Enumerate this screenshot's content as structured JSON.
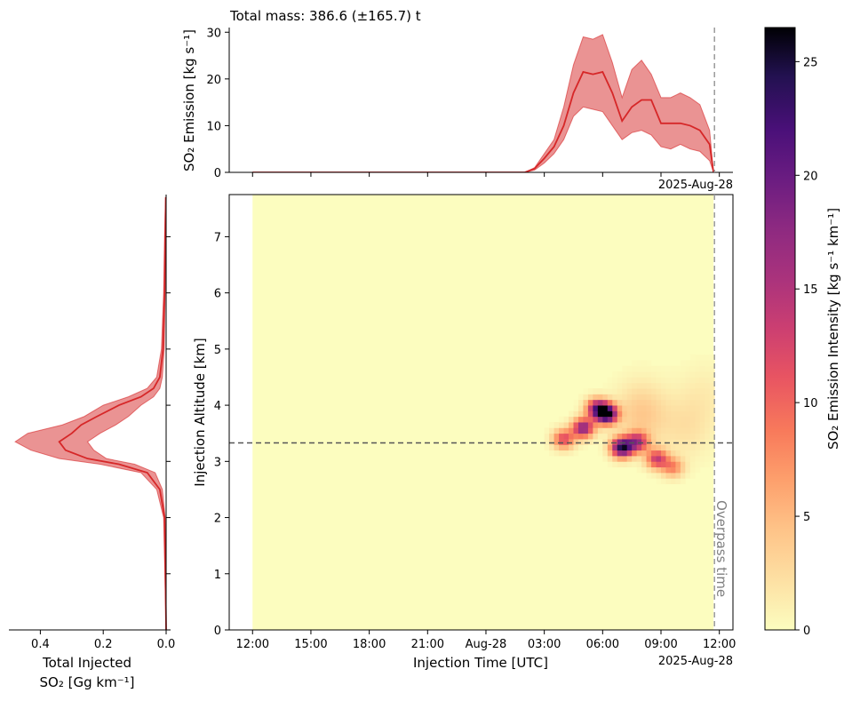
{
  "chart_data": [
    {
      "panel": "top",
      "type": "area",
      "title": "Total mass: 386.6 (±165.7) t",
      "ylabel": "SO₂ Emission [kg s⁻¹]",
      "ylim": [
        0,
        31
      ],
      "yticks": [
        "0",
        "10",
        "20",
        "30"
      ],
      "xlim_hours": [
        -13.2,
        12.7
      ],
      "x_offset_label": "2025-Aug-28",
      "x": [
        -12,
        0,
        2,
        2.5,
        3.0,
        3.5,
        4.0,
        4.5,
        5.0,
        5.5,
        6.0,
        6.5,
        7.0,
        7.5,
        8.0,
        8.5,
        9.0,
        9.5,
        10.0,
        10.5,
        11.0,
        11.5,
        11.7
      ],
      "mean": [
        0,
        0,
        0,
        0.8,
        3.0,
        5.5,
        10.0,
        17.0,
        21.5,
        21.0,
        21.5,
        17.0,
        11.0,
        14.0,
        15.5,
        15.5,
        10.5,
        10.5,
        10.5,
        10.0,
        9.0,
        6.0,
        0
      ],
      "lower": [
        0,
        0,
        0,
        0.5,
        2.0,
        4.0,
        7.0,
        12.0,
        14.0,
        13.5,
        13.0,
        10.0,
        7.0,
        8.5,
        9.0,
        8.0,
        5.5,
        5.0,
        6.0,
        5.0,
        4.5,
        2.5,
        0
      ],
      "upper": [
        0,
        0,
        0,
        1.0,
        4.0,
        7.0,
        14.0,
        23.0,
        29.0,
        28.5,
        29.5,
        23.5,
        16.0,
        22.0,
        24.0,
        21.0,
        16.0,
        16.0,
        17.0,
        16.0,
        14.5,
        9.0,
        0
      ],
      "color": "#d62728"
    },
    {
      "panel": "side",
      "type": "area",
      "xlabel": "Total Injected",
      "xlabel2": "SO₂ [Gg km⁻¹]",
      "xlim": [
        0.5,
        0.0
      ],
      "xticks": [
        "0.4",
        "0.2",
        "0.0"
      ],
      "y": [
        0,
        2.0,
        2.5,
        2.8,
        2.95,
        3.05,
        3.2,
        3.35,
        3.5,
        3.65,
        3.8,
        4.0,
        4.15,
        4.3,
        4.5,
        5.0,
        6.0,
        7.0,
        7.7
      ],
      "mean": [
        0,
        0.005,
        0.02,
        0.06,
        0.15,
        0.25,
        0.32,
        0.34,
        0.3,
        0.27,
        0.22,
        0.15,
        0.08,
        0.04,
        0.02,
        0.01,
        0.005,
        0.003,
        0.001
      ],
      "lower": [
        0,
        0.003,
        0.012,
        0.035,
        0.1,
        0.19,
        0.23,
        0.25,
        0.21,
        0.16,
        0.12,
        0.08,
        0.04,
        0.02,
        0.012,
        0.006,
        0.003,
        0.002,
        0.0
      ],
      "upper": [
        0,
        0.008,
        0.03,
        0.08,
        0.21,
        0.34,
        0.43,
        0.48,
        0.44,
        0.33,
        0.26,
        0.2,
        0.12,
        0.06,
        0.03,
        0.015,
        0.008,
        0.005,
        0.002
      ],
      "color": "#d62728"
    },
    {
      "panel": "main",
      "type": "heatmap",
      "xlabel": "Injection Time [UTC]",
      "ylabel": "Injection Altitude [km]",
      "x_offset_label": "2025-Aug-28",
      "xlim_hours": [
        -13.2,
        12.7
      ],
      "ylim": [
        0,
        7.75
      ],
      "xticks_hours": [
        -12,
        -9,
        -6,
        -3,
        0,
        3,
        6,
        9,
        12
      ],
      "xticks": [
        "12:00",
        "15:00",
        "18:00",
        "21:00",
        "Aug-28",
        "03:00",
        "06:00",
        "09:00",
        "12:00"
      ],
      "yticks": [
        "0",
        "1",
        "2",
        "3",
        "4",
        "5",
        "6",
        "7"
      ],
      "data_x_range_hours": [
        -12.0,
        11.7
      ],
      "overpass_time_hours": 11.75,
      "overpass_label": "Overpass time",
      "reference_altitude_km": 3.33,
      "hotspots": [
        {
          "t": 6.2,
          "z": 3.85,
          "value": 26
        },
        {
          "t": 7.0,
          "z": 3.25,
          "value": 24
        },
        {
          "t": 5.0,
          "z": 3.6,
          "value": 18
        },
        {
          "t": 4.0,
          "z": 3.4,
          "value": 12
        },
        {
          "t": 7.8,
          "z": 3.35,
          "value": 14
        },
        {
          "t": 8.8,
          "z": 3.05,
          "value": 13
        },
        {
          "t": 9.6,
          "z": 2.9,
          "value": 8
        },
        {
          "t": 5.7,
          "z": 3.95,
          "value": 16
        },
        {
          "t": 8.0,
          "z": 3.85,
          "value": 4
        },
        {
          "t": 10.3,
          "z": 3.6,
          "value": 2
        },
        {
          "t": 11.2,
          "z": 4.2,
          "value": 1.2
        }
      ]
    },
    {
      "panel": "colorbar",
      "type": "colorbar",
      "label": "SO₂ Emission Intensity [kg s⁻¹ km⁻¹]",
      "vmin": 0,
      "vmax": 26.5,
      "ticks": [
        "0",
        "5",
        "10",
        "15",
        "20",
        "25"
      ],
      "colormap": "magma_r"
    }
  ]
}
